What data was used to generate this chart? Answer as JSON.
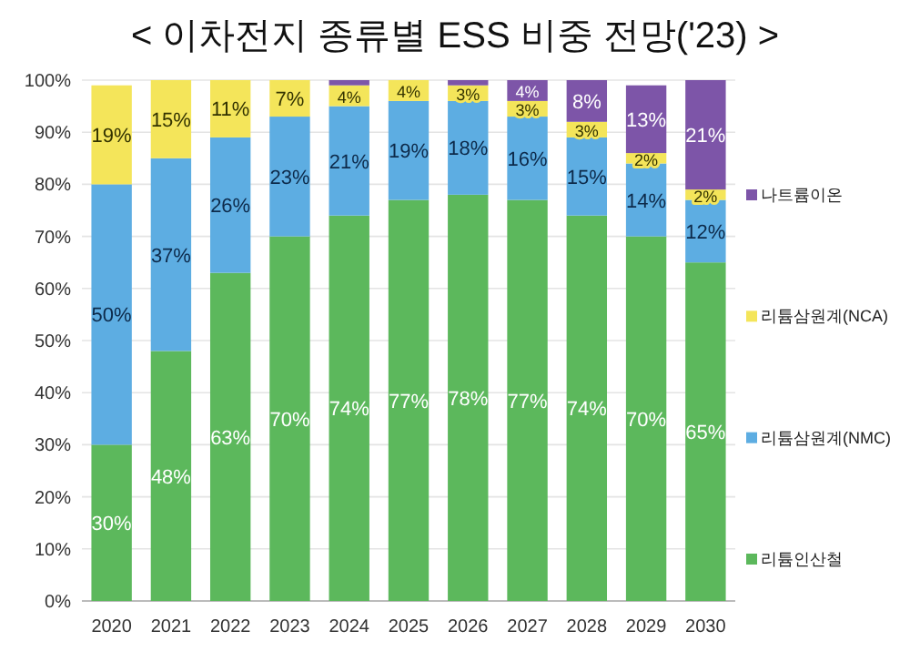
{
  "chart_data": {
    "type": "bar",
    "stacked": true,
    "title": "< 이차전지 종류별 ESS 비중 전망('23) >",
    "categories": [
      "2020",
      "2021",
      "2022",
      "2023",
      "2024",
      "2025",
      "2026",
      "2027",
      "2028",
      "2029",
      "2030"
    ],
    "series": [
      {
        "name": "리튬인산철",
        "color": "#5cb85c",
        "values": [
          30,
          48,
          63,
          70,
          74,
          77,
          78,
          77,
          74,
          70,
          65
        ],
        "value_labels": [
          "30%",
          "48%",
          "63%",
          "70%",
          "74%",
          "77%",
          "78%",
          "77%",
          "74%",
          "70%",
          "65%"
        ]
      },
      {
        "name": "리튬삼원계(NMC)",
        "color": "#5dade2",
        "values": [
          50,
          37,
          26,
          23,
          21,
          19,
          18,
          16,
          15,
          14,
          12
        ],
        "value_labels": [
          "50%",
          "37%",
          "26%",
          "23%",
          "21%",
          "19%",
          "18%",
          "16%",
          "15%",
          "14%",
          "12%"
        ]
      },
      {
        "name": "리튬삼원계(NCA)",
        "color": "#f4e55a",
        "values": [
          19,
          15,
          11,
          7,
          4,
          4,
          3,
          3,
          3,
          2,
          2
        ],
        "value_labels": [
          "19%",
          "15%",
          "11%",
          "7%",
          "4%",
          "4%",
          "3%",
          "3%",
          "3%",
          "2%",
          "2%"
        ]
      },
      {
        "name": "나트륨이온",
        "color": "#7d55a8",
        "values": [
          0,
          0,
          0,
          0,
          1,
          0,
          1,
          4,
          8,
          13,
          21
        ],
        "value_labels": [
          null,
          null,
          null,
          null,
          null,
          null,
          null,
          "4%",
          "8%",
          "13%",
          "21%"
        ]
      }
    ],
    "ylim": [
      0,
      100
    ],
    "yticks": [
      {
        "value": 0,
        "label": "0%"
      },
      {
        "value": 10,
        "label": "10%"
      },
      {
        "value": 20,
        "label": "20%"
      },
      {
        "value": 30,
        "label": "30%"
      },
      {
        "value": 40,
        "label": "40%"
      },
      {
        "value": 50,
        "label": "50%"
      },
      {
        "value": 60,
        "label": "60%"
      },
      {
        "value": 70,
        "label": "70%"
      },
      {
        "value": 80,
        "label": "80%"
      },
      {
        "value": 90,
        "label": "90%"
      },
      {
        "value": 100,
        "label": "100%"
      }
    ],
    "grid": "y",
    "legend": "right"
  }
}
